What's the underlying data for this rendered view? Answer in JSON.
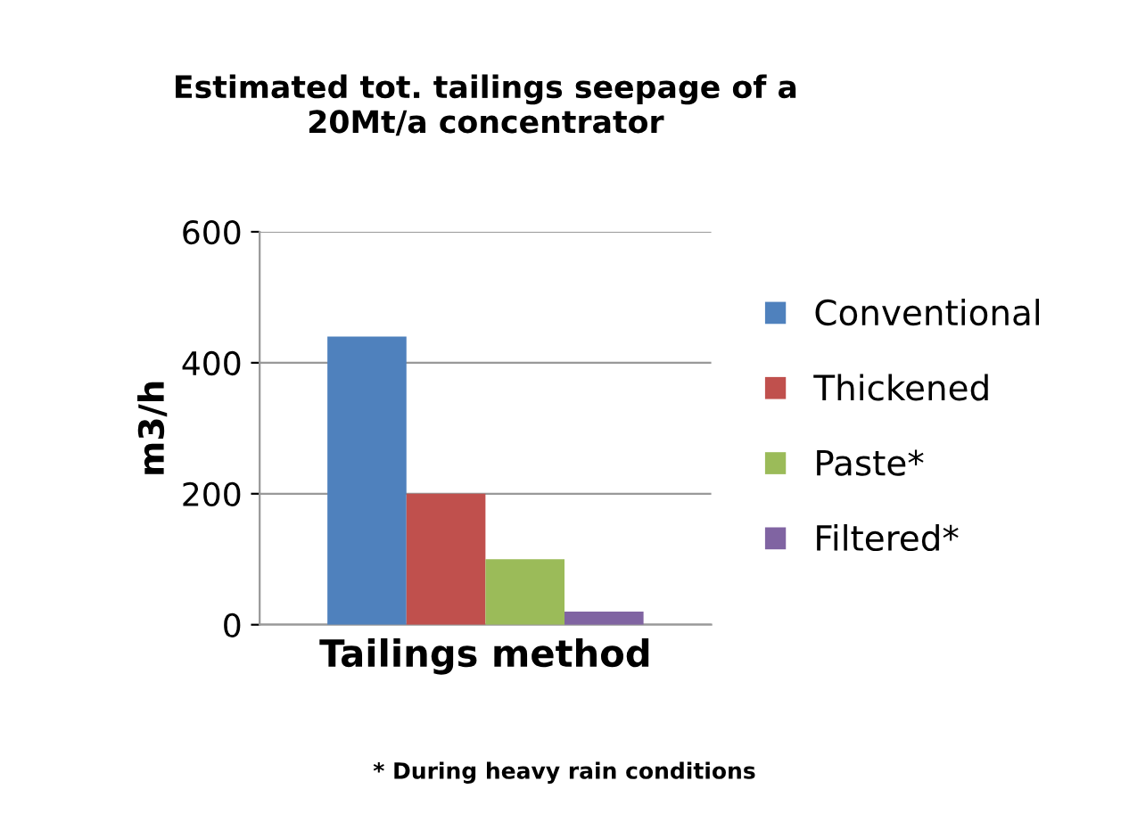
{
  "chart_data": {
    "type": "bar",
    "title": "Estimated tot. tailings seepage of a\n20Mt/a concentrator",
    "xlabel": "Tailings method",
    "ylabel": "m3/h",
    "categories": [
      null
    ],
    "series": [
      {
        "name": "Conventional",
        "color": "#4f81bd",
        "values": [
          440
        ]
      },
      {
        "name": "Thickened",
        "color": "#c0504d",
        "values": [
          200
        ]
      },
      {
        "name": "Paste*",
        "color": "#9bbb59",
        "values": [
          100
        ]
      },
      {
        "name": "Filtered*",
        "color": "#8064a2",
        "values": [
          20
        ]
      }
    ],
    "ylim": [
      0,
      600
    ],
    "yticks": [
      0,
      200,
      400,
      600
    ],
    "grid": "y",
    "legend": "right",
    "annotations": [
      "* During heavy rain conditions"
    ]
  }
}
